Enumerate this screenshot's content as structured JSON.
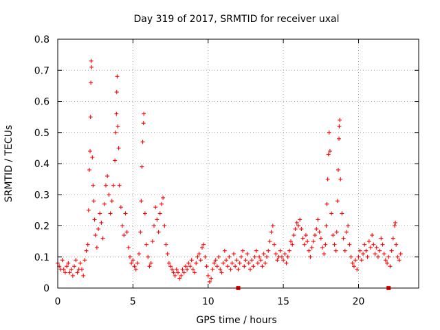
{
  "chart_data": {
    "type": "scatter",
    "title": "Day 319 of 2017, SRMTID for receiver uxal",
    "xlabel": "GPS time / hours",
    "ylabel": "SRMTID / TECUs",
    "xlim": [
      0,
      24
    ],
    "ylim": [
      0,
      0.8
    ],
    "x_ticks": [
      {
        "value": 0,
        "label": "0"
      },
      {
        "value": 5,
        "label": "5"
      },
      {
        "value": 10,
        "label": "10"
      },
      {
        "value": 15,
        "label": "15"
      },
      {
        "value": 20,
        "label": "20"
      }
    ],
    "y_ticks": [
      {
        "value": 0,
        "label": "0"
      },
      {
        "value": 0.1,
        "label": "0.1"
      },
      {
        "value": 0.2,
        "label": "0.2"
      },
      {
        "value": 0.3,
        "label": "0.3"
      },
      {
        "value": 0.4,
        "label": "0.4"
      },
      {
        "value": 0.5,
        "label": "0.5"
      },
      {
        "value": 0.6,
        "label": "0.6"
      },
      {
        "value": 0.7,
        "label": "0.7"
      },
      {
        "value": 0.8,
        "label": "0.8"
      }
    ],
    "grid": true,
    "series": [
      {
        "name": "SRMTID",
        "color": "#ff0000",
        "marker": "plus",
        "points": [
          [
            0.0,
            0.08
          ],
          [
            0.1,
            0.07
          ],
          [
            0.2,
            0.06
          ],
          [
            0.3,
            0.09
          ],
          [
            0.4,
            0.06
          ],
          [
            0.5,
            0.05
          ],
          [
            0.6,
            0.07
          ],
          [
            0.7,
            0.08
          ],
          [
            0.8,
            0.05
          ],
          [
            0.9,
            0.06
          ],
          [
            1.0,
            0.04
          ],
          [
            1.1,
            0.07
          ],
          [
            1.2,
            0.09
          ],
          [
            1.3,
            0.05
          ],
          [
            1.4,
            0.06
          ],
          [
            1.5,
            0.08
          ],
          [
            1.6,
            0.06
          ],
          [
            1.7,
            0.04
          ],
          [
            1.8,
            0.09
          ],
          [
            1.9,
            0.12
          ],
          [
            2.0,
            0.14
          ],
          [
            2.05,
            0.25
          ],
          [
            2.1,
            0.38
          ],
          [
            2.15,
            0.44
          ],
          [
            2.18,
            0.55
          ],
          [
            2.2,
            0.66
          ],
          [
            2.22,
            0.73
          ],
          [
            2.25,
            0.71
          ],
          [
            2.3,
            0.42
          ],
          [
            2.35,
            0.33
          ],
          [
            2.4,
            0.28
          ],
          [
            2.45,
            0.22
          ],
          [
            2.5,
            0.17
          ],
          [
            2.6,
            0.13
          ],
          [
            2.7,
            0.19
          ],
          [
            2.8,
            0.24
          ],
          [
            2.9,
            0.21
          ],
          [
            3.0,
            0.16
          ],
          [
            3.1,
            0.27
          ],
          [
            3.2,
            0.33
          ],
          [
            3.3,
            0.36
          ],
          [
            3.4,
            0.3
          ],
          [
            3.5,
            0.24
          ],
          [
            3.6,
            0.28
          ],
          [
            3.7,
            0.33
          ],
          [
            3.8,
            0.41
          ],
          [
            3.85,
            0.5
          ],
          [
            3.9,
            0.56
          ],
          [
            3.92,
            0.63
          ],
          [
            3.95,
            0.68
          ],
          [
            4.0,
            0.52
          ],
          [
            4.05,
            0.45
          ],
          [
            4.1,
            0.33
          ],
          [
            4.2,
            0.26
          ],
          [
            4.3,
            0.2
          ],
          [
            4.4,
            0.17
          ],
          [
            4.5,
            0.24
          ],
          [
            4.6,
            0.18
          ],
          [
            4.7,
            0.13
          ],
          [
            4.8,
            0.1
          ],
          [
            4.9,
            0.08
          ],
          [
            5.0,
            0.09
          ],
          [
            5.1,
            0.07
          ],
          [
            5.2,
            0.06
          ],
          [
            5.3,
            0.08
          ],
          [
            5.4,
            0.11
          ],
          [
            5.5,
            0.18
          ],
          [
            5.55,
            0.28
          ],
          [
            5.6,
            0.39
          ],
          [
            5.65,
            0.47
          ],
          [
            5.7,
            0.53
          ],
          [
            5.72,
            0.56
          ],
          [
            5.8,
            0.24
          ],
          [
            5.9,
            0.14
          ],
          [
            6.0,
            0.1
          ],
          [
            6.1,
            0.07
          ],
          [
            6.2,
            0.08
          ],
          [
            6.3,
            0.15
          ],
          [
            6.4,
            0.2
          ],
          [
            6.5,
            0.26
          ],
          [
            6.6,
            0.22
          ],
          [
            6.7,
            0.18
          ],
          [
            6.8,
            0.24
          ],
          [
            6.9,
            0.27
          ],
          [
            7.0,
            0.29
          ],
          [
            7.1,
            0.2
          ],
          [
            7.2,
            0.14
          ],
          [
            7.3,
            0.11
          ],
          [
            7.4,
            0.08
          ],
          [
            7.5,
            0.07
          ],
          [
            7.6,
            0.06
          ],
          [
            7.7,
            0.05
          ],
          [
            7.8,
            0.04
          ],
          [
            7.9,
            0.06
          ],
          [
            8.0,
            0.05
          ],
          [
            8.1,
            0.03
          ],
          [
            8.2,
            0.04
          ],
          [
            8.3,
            0.06
          ],
          [
            8.4,
            0.05
          ],
          [
            8.5,
            0.07
          ],
          [
            8.6,
            0.06
          ],
          [
            8.7,
            0.08
          ],
          [
            8.8,
            0.07
          ],
          [
            8.9,
            0.09
          ],
          [
            9.0,
            0.06
          ],
          [
            9.1,
            0.05
          ],
          [
            9.2,
            0.08
          ],
          [
            9.3,
            0.1
          ],
          [
            9.4,
            0.11
          ],
          [
            9.5,
            0.09
          ],
          [
            9.6,
            0.13
          ],
          [
            9.7,
            0.14
          ],
          [
            9.8,
            0.1
          ],
          [
            9.9,
            0.07
          ],
          [
            10.0,
            0.04
          ],
          [
            10.1,
            0.02
          ],
          [
            10.2,
            0.03
          ],
          [
            10.3,
            0.06
          ],
          [
            10.4,
            0.08
          ],
          [
            10.5,
            0.09
          ],
          [
            10.6,
            0.07
          ],
          [
            10.7,
            0.1
          ],
          [
            10.8,
            0.06
          ],
          [
            10.9,
            0.05
          ],
          [
            11.0,
            0.08
          ],
          [
            11.1,
            0.12
          ],
          [
            11.2,
            0.09
          ],
          [
            11.3,
            0.07
          ],
          [
            11.4,
            0.1
          ],
          [
            11.5,
            0.06
          ],
          [
            11.6,
            0.08
          ],
          [
            11.7,
            0.11
          ],
          [
            11.8,
            0.07
          ],
          [
            11.9,
            0.09
          ],
          [
            12.0,
            0.06
          ],
          [
            12.1,
            0.08
          ],
          [
            12.2,
            0.1
          ],
          [
            12.3,
            0.12
          ],
          [
            12.4,
            0.07
          ],
          [
            12.5,
            0.09
          ],
          [
            12.6,
            0.11
          ],
          [
            12.7,
            0.08
          ],
          [
            12.8,
            0.06
          ],
          [
            12.9,
            0.09
          ],
          [
            13.0,
            0.07
          ],
          [
            13.1,
            0.1
          ],
          [
            13.2,
            0.12
          ],
          [
            13.3,
            0.08
          ],
          [
            13.4,
            0.1
          ],
          [
            13.5,
            0.09
          ],
          [
            13.6,
            0.07
          ],
          [
            13.7,
            0.11
          ],
          [
            13.8,
            0.08
          ],
          [
            13.9,
            0.1
          ],
          [
            14.0,
            0.12
          ],
          [
            14.1,
            0.15
          ],
          [
            14.2,
            0.18
          ],
          [
            14.3,
            0.2
          ],
          [
            14.4,
            0.14
          ],
          [
            14.5,
            0.11
          ],
          [
            14.6,
            0.09
          ],
          [
            14.7,
            0.1
          ],
          [
            14.8,
            0.12
          ],
          [
            14.9,
            0.1
          ],
          [
            15.0,
            0.09
          ],
          [
            15.1,
            0.11
          ],
          [
            15.2,
            0.08
          ],
          [
            15.3,
            0.1
          ],
          [
            15.4,
            0.12
          ],
          [
            15.5,
            0.15
          ],
          [
            15.6,
            0.14
          ],
          [
            15.7,
            0.17
          ],
          [
            15.8,
            0.19
          ],
          [
            15.9,
            0.21
          ],
          [
            16.0,
            0.2
          ],
          [
            16.1,
            0.22
          ],
          [
            16.2,
            0.19
          ],
          [
            16.3,
            0.16
          ],
          [
            16.4,
            0.14
          ],
          [
            16.5,
            0.17
          ],
          [
            16.6,
            0.15
          ],
          [
            16.7,
            0.12
          ],
          [
            16.8,
            0.1
          ],
          [
            16.9,
            0.13
          ],
          [
            17.0,
            0.15
          ],
          [
            17.1,
            0.17
          ],
          [
            17.2,
            0.19
          ],
          [
            17.3,
            0.22
          ],
          [
            17.4,
            0.18
          ],
          [
            17.5,
            0.16
          ],
          [
            17.6,
            0.13
          ],
          [
            17.7,
            0.11
          ],
          [
            17.8,
            0.14
          ],
          [
            17.85,
            0.2
          ],
          [
            17.9,
            0.27
          ],
          [
            17.95,
            0.35
          ],
          [
            18.0,
            0.43
          ],
          [
            18.05,
            0.5
          ],
          [
            18.1,
            0.44
          ],
          [
            18.2,
            0.24
          ],
          [
            18.3,
            0.17
          ],
          [
            18.4,
            0.14
          ],
          [
            18.5,
            0.12
          ],
          [
            18.55,
            0.18
          ],
          [
            18.6,
            0.28
          ],
          [
            18.65,
            0.38
          ],
          [
            18.7,
            0.48
          ],
          [
            18.72,
            0.52
          ],
          [
            18.75,
            0.54
          ],
          [
            18.8,
            0.35
          ],
          [
            18.9,
            0.24
          ],
          [
            19.0,
            0.16
          ],
          [
            19.1,
            0.12
          ],
          [
            19.2,
            0.18
          ],
          [
            19.3,
            0.2
          ],
          [
            19.4,
            0.14
          ],
          [
            19.5,
            0.1
          ],
          [
            19.6,
            0.08
          ],
          [
            19.7,
            0.07
          ],
          [
            19.8,
            0.09
          ],
          [
            19.9,
            0.06
          ],
          [
            20.0,
            0.1
          ],
          [
            20.1,
            0.12
          ],
          [
            20.2,
            0.09
          ],
          [
            20.3,
            0.11
          ],
          [
            20.4,
            0.14
          ],
          [
            20.5,
            0.12
          ],
          [
            20.6,
            0.1
          ],
          [
            20.7,
            0.15
          ],
          [
            20.8,
            0.13
          ],
          [
            20.9,
            0.17
          ],
          [
            21.0,
            0.14
          ],
          [
            21.1,
            0.11
          ],
          [
            21.2,
            0.13
          ],
          [
            21.3,
            0.1
          ],
          [
            21.4,
            0.12
          ],
          [
            21.5,
            0.16
          ],
          [
            21.6,
            0.14
          ],
          [
            21.7,
            0.11
          ],
          [
            21.8,
            0.09
          ],
          [
            21.9,
            0.08
          ],
          [
            22.0,
            0.1
          ],
          [
            22.1,
            0.07
          ],
          [
            22.2,
            0.12
          ],
          [
            22.3,
            0.16
          ],
          [
            22.4,
            0.2
          ],
          [
            22.45,
            0.21
          ],
          [
            22.5,
            0.14
          ],
          [
            22.6,
            0.1
          ],
          [
            22.7,
            0.09
          ],
          [
            22.8,
            0.11
          ]
        ]
      }
    ],
    "missing_data_markers": [
      12.0,
      22.0
    ]
  }
}
